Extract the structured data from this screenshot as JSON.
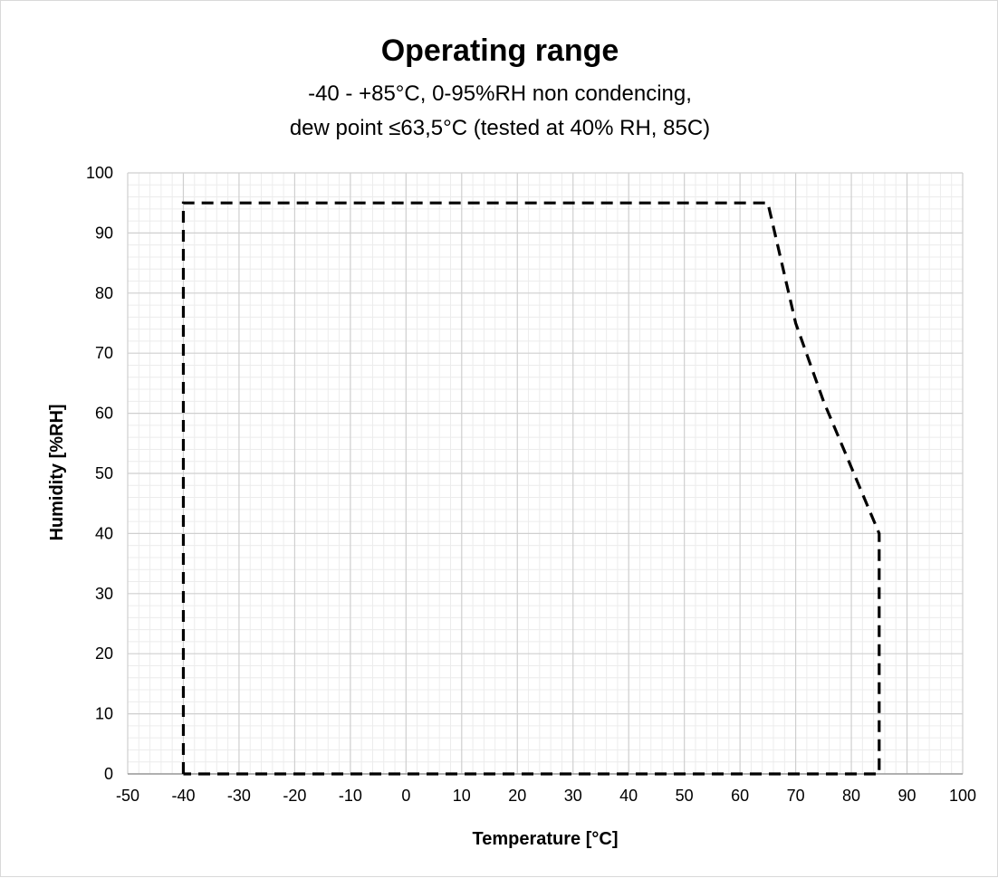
{
  "chart_data": {
    "type": "line",
    "title": "Operating range",
    "subtitle_lines": [
      "-40 - +85°C, 0-95%RH non condencing,",
      "dew point ≤63,5°C (tested at 40% RH, 85C)"
    ],
    "xlabel": "Temperature [°C]",
    "ylabel": "Humidity [%RH]",
    "xlim": [
      -50,
      100
    ],
    "ylim": [
      0,
      100
    ],
    "x_major_step": 10,
    "y_major_step": 10,
    "x_minor_step": 2,
    "y_minor_step": 2,
    "x_ticks": [
      "-50",
      "-40",
      "-30",
      "-20",
      "-10",
      "0",
      "10",
      "20",
      "30",
      "40",
      "50",
      "60",
      "70",
      "80",
      "90",
      "100"
    ],
    "y_ticks": [
      "0",
      "10",
      "20",
      "30",
      "40",
      "50",
      "60",
      "70",
      "80",
      "90",
      "100"
    ],
    "grid": true,
    "series": [
      {
        "line_style": "dashed",
        "color": "#000000",
        "x": [
          -40,
          -40,
          65,
          70,
          75,
          80,
          85,
          85,
          -40
        ],
        "y": [
          0,
          95,
          95,
          75,
          62,
          51,
          40,
          0,
          0
        ]
      }
    ]
  }
}
